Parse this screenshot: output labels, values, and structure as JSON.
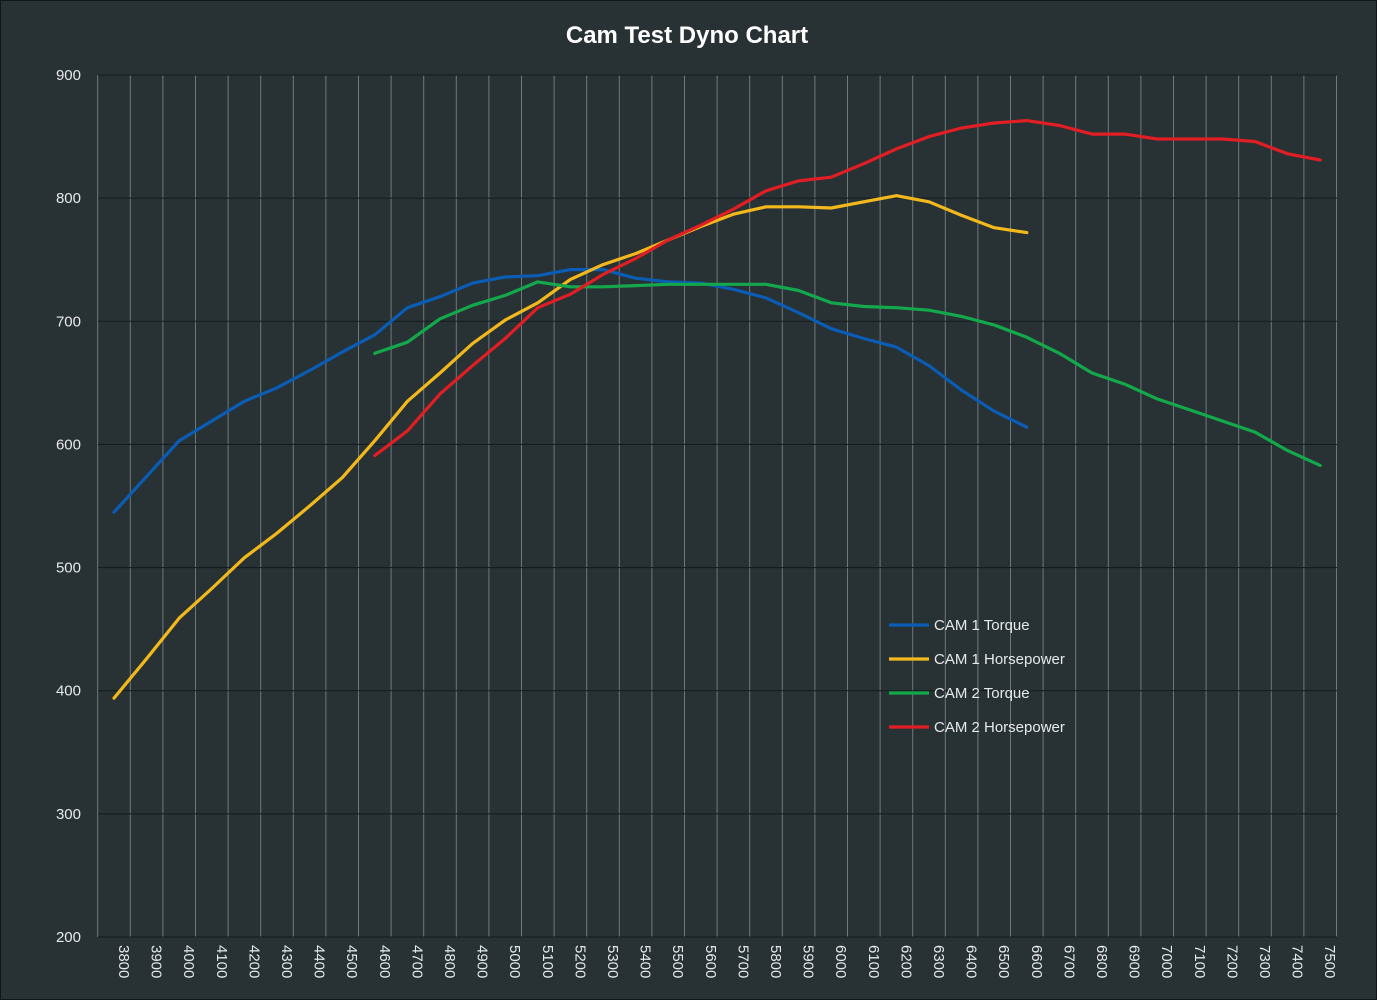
{
  "chart_data": {
    "type": "line",
    "title": "Cam Test Dyno Chart",
    "xlabel": "",
    "ylabel": "",
    "ylim": [
      200,
      900
    ],
    "yticks": [
      200,
      300,
      400,
      500,
      600,
      700,
      800,
      900
    ],
    "x_ticks": [
      3800,
      3900,
      4000,
      4100,
      4200,
      4300,
      4400,
      4500,
      4600,
      4700,
      4800,
      4900,
      5000,
      5100,
      5200,
      5300,
      5400,
      5500,
      5600,
      5700,
      5800,
      5900,
      6000,
      6100,
      6200,
      6300,
      6400,
      6500,
      6600,
      6700,
      6800,
      6900,
      7000,
      7100,
      7200,
      7300,
      7400,
      7500
    ],
    "grid": true,
    "legend_position": "center-right",
    "series": [
      {
        "name": "CAM 1 Torque",
        "color": "#0a5cb4",
        "x": [
          3800,
          3900,
          4000,
          4100,
          4200,
          4300,
          4400,
          4500,
          4600,
          4700,
          4800,
          4900,
          5000,
          5100,
          5200,
          5300,
          5400,
          5500,
          5600,
          5700,
          5800,
          5900,
          6000,
          6100,
          6200,
          6300,
          6400,
          6500,
          6600
        ],
        "values": [
          545,
          574,
          603,
          619,
          635,
          646,
          660,
          675,
          689,
          711,
          720,
          731,
          736,
          737,
          742,
          742,
          735,
          732,
          731,
          726,
          719,
          707,
          694,
          686,
          679,
          664,
          644,
          627,
          614
        ]
      },
      {
        "name": "CAM 1 Horsepower",
        "color": "#f2b81c",
        "x": [
          3800,
          3900,
          4000,
          4100,
          4200,
          4300,
          4400,
          4500,
          4600,
          4700,
          4800,
          4900,
          5000,
          5100,
          5200,
          5300,
          5400,
          5500,
          5600,
          5700,
          5800,
          5900,
          6000,
          6100,
          6200,
          6300,
          6400,
          6500,
          6600
        ],
        "values": [
          394,
          426,
          459,
          483,
          508,
          528,
          550,
          573,
          603,
          635,
          658,
          682,
          701,
          715,
          734,
          746,
          755,
          766,
          777,
          787,
          793,
          793,
          792,
          797,
          802,
          797,
          786,
          776,
          772
        ]
      },
      {
        "name": "CAM 2 Torque",
        "color": "#14a84c",
        "x": [
          4600,
          4700,
          4800,
          4900,
          5000,
          5100,
          5200,
          5300,
          5400,
          5500,
          5600,
          5700,
          5800,
          5900,
          6000,
          6100,
          6200,
          6300,
          6400,
          6500,
          6600,
          6700,
          6800,
          6900,
          7000,
          7100,
          7200,
          7300,
          7400,
          7500
        ],
        "values": [
          674,
          683,
          702,
          713,
          721,
          732,
          728,
          728,
          729,
          730,
          730,
          730,
          730,
          725,
          715,
          712,
          711,
          709,
          704,
          697,
          687,
          674,
          658,
          649,
          637,
          628,
          619,
          610,
          595,
          583
        ]
      },
      {
        "name": "CAM 2 Horsepower",
        "color": "#e01e24",
        "x": [
          4600,
          4700,
          4800,
          4900,
          5000,
          5100,
          5200,
          5300,
          5400,
          5500,
          5600,
          5700,
          5800,
          5900,
          6000,
          6100,
          6200,
          6300,
          6400,
          6500,
          6600,
          6700,
          6800,
          6900,
          7000,
          7100,
          7200,
          7300,
          7400,
          7500
        ],
        "values": [
          591,
          611,
          641,
          664,
          686,
          711,
          722,
          738,
          751,
          766,
          778,
          791,
          806,
          814,
          817,
          828,
          840,
          850,
          857,
          861,
          863,
          859,
          852,
          852,
          848,
          848,
          848,
          846,
          836,
          831
        ]
      }
    ]
  }
}
